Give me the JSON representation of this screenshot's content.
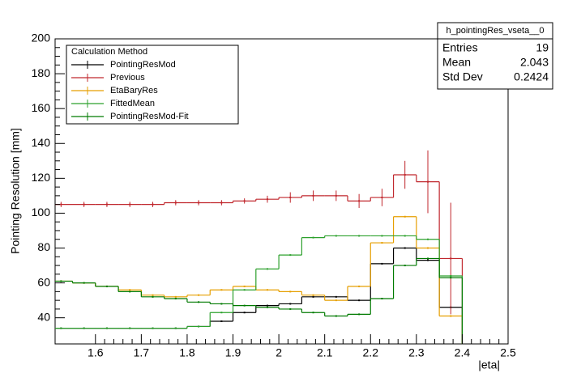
{
  "chart_data": {
    "type": "histogram",
    "x_label": "|eta|",
    "y_label": "Pointing Resolution [mm]",
    "bins": [
      1.5,
      1.55,
      1.6,
      1.65,
      1.7,
      1.75,
      1.8,
      1.85,
      1.9,
      1.95,
      2.0,
      2.05,
      2.1,
      2.15,
      2.2,
      2.25,
      2.3,
      2.35,
      2.4
    ],
    "series": [
      {
        "name": "PointingResMod",
        "color": "#000000",
        "values": [
          34,
          34,
          34,
          34,
          34,
          34,
          35,
          38,
          43,
          47,
          48,
          52,
          52,
          50,
          71,
          80,
          73,
          46
        ]
      },
      {
        "name": "Previous",
        "color": "#c0272d",
        "values": [
          105,
          105,
          105,
          105,
          105,
          106,
          106,
          106,
          107,
          108,
          109,
          110,
          110,
          107,
          109,
          122,
          118,
          74
        ],
        "errors": [
          1.5,
          1.5,
          1.5,
          1.5,
          1.5,
          1.5,
          1.5,
          1.5,
          1.5,
          2,
          3,
          3,
          3,
          4,
          5,
          8,
          18,
          32
        ]
      },
      {
        "name": "EtaBaryRes",
        "color": "#e69f00",
        "values": [
          61,
          60,
          58,
          56,
          53,
          52,
          53,
          56,
          58,
          56,
          55,
          53,
          50,
          58,
          83,
          98,
          80,
          41
        ]
      },
      {
        "name": "FittedMean",
        "color": "#2ca02c",
        "values": [
          34,
          34,
          34,
          34,
          34,
          34,
          35,
          43,
          56,
          68,
          76,
          86,
          87,
          87,
          87,
          87,
          85,
          64
        ]
      },
      {
        "name": "PointingResMod-Fit",
        "color": "#007a00",
        "values": [
          61,
          60,
          58,
          55,
          52,
          51,
          49,
          48,
          47,
          46,
          45,
          43,
          41,
          42,
          51,
          70,
          74,
          63
        ]
      }
    ],
    "xlim": [
      1.512,
      2.5
    ],
    "xticks": [
      1.6,
      1.7,
      1.8,
      1.9,
      2,
      2.1,
      2.2,
      2.3,
      2.4,
      2.5
    ],
    "ylim": [
      25,
      200
    ],
    "yticks": [
      40,
      60,
      80,
      100,
      120,
      140,
      160,
      180,
      200
    ],
    "legend": {
      "title": "Calculation Method",
      "position": "upper left"
    },
    "stats": {
      "name": "h_pointingRes_vseta__0",
      "rows": [
        [
          "Entries",
          "19"
        ],
        [
          "Mean",
          "2.043"
        ],
        [
          "Std Dev",
          "0.2424"
        ]
      ]
    }
  }
}
